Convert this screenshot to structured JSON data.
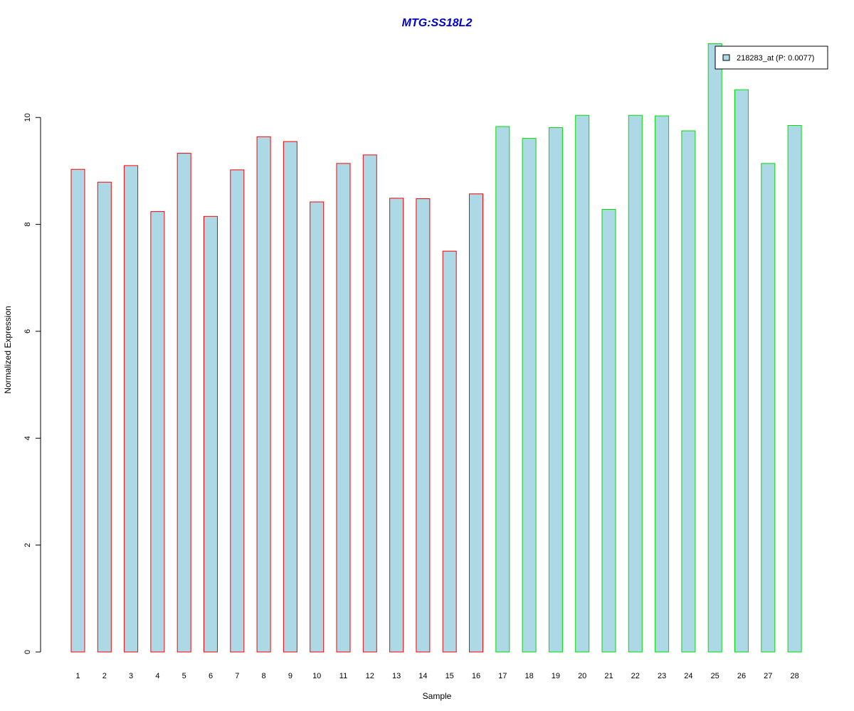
{
  "chart_data": {
    "type": "bar",
    "title": "MTG:SS18L2",
    "xlabel": "Sample",
    "ylabel": "Normalized Expression",
    "categories": [
      "1",
      "2",
      "3",
      "4",
      "5",
      "6",
      "7",
      "8",
      "9",
      "10",
      "11",
      "12",
      "13",
      "14",
      "15",
      "16",
      "17",
      "18",
      "19",
      "20",
      "21",
      "22",
      "23",
      "24",
      "25",
      "26",
      "27",
      "28"
    ],
    "series": [
      {
        "name": "218283_at (P: 0.0077)",
        "values": [
          9.03,
          8.79,
          9.1,
          8.24,
          9.33,
          8.15,
          9.02,
          9.64,
          9.55,
          8.42,
          9.14,
          9.3,
          8.49,
          8.48,
          7.5,
          8.57,
          9.83,
          9.61,
          9.81,
          10.04,
          8.28,
          10.04,
          10.03,
          9.75,
          11.38,
          10.52,
          9.14,
          9.85
        ],
        "group_border_colors": [
          "#ff0000",
          "#ff0000",
          "#ff0000",
          "#ff0000",
          "#ff0000",
          "#ff0000",
          "#ff0000",
          "#ff0000",
          "#ff0000",
          "#ff0000",
          "#ff0000",
          "#ff0000",
          "#ff0000",
          "#ff0000",
          "#ff0000",
          "#ff0000",
          "#00dd00",
          "#00dd00",
          "#00dd00",
          "#00dd00",
          "#00dd00",
          "#00dd00",
          "#00dd00",
          "#00dd00",
          "#00dd00",
          "#00dd00",
          "#00dd00",
          "#00dd00"
        ]
      }
    ],
    "yticks": [
      "0",
      "2",
      "4",
      "6",
      "8",
      "10"
    ],
    "ylim": [
      0,
      11.4
    ],
    "legend_label": "218283_at (P: 0.0077)",
    "legend_position": "top-right",
    "grid": false,
    "colors": {
      "bar_fill": "#add8e6",
      "title": "#0000cc",
      "axis": "#000000"
    }
  }
}
